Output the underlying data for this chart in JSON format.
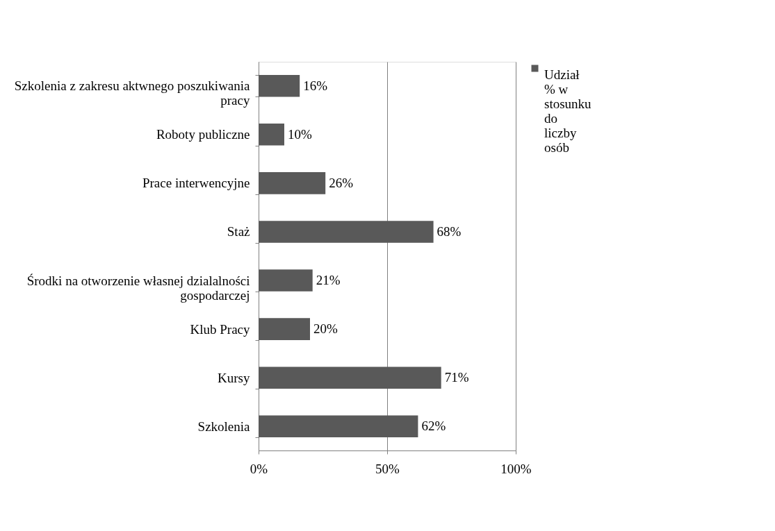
{
  "chart_data": {
    "type": "bar",
    "orientation": "horizontal",
    "categories": [
      "Szkolenia z zakresu aktwnego poszukiwania pracy",
      "Roboty publiczne",
      "Prace interwencyjne",
      "Staż",
      "Środki na otworzenie własnej dzialalności gospodarczej",
      "Klub Pracy",
      "Kursy",
      "Szkolenia"
    ],
    "series": [
      {
        "name": "Udział % w stosunku do liczby osób",
        "color": "#595959",
        "values": [
          16,
          10,
          26,
          68,
          21,
          20,
          71,
          62
        ],
        "value_labels": [
          "16%",
          "10%",
          "26%",
          "68%",
          "21%",
          "20%",
          "71%",
          "62%"
        ]
      }
    ],
    "xlim": [
      0,
      100
    ],
    "xticks": [
      {
        "value": 0,
        "label": "0%"
      },
      {
        "value": 50,
        "label": "50%"
      },
      {
        "value": 100,
        "label": "100%"
      }
    ],
    "grid": "x",
    "legend": "right"
  }
}
